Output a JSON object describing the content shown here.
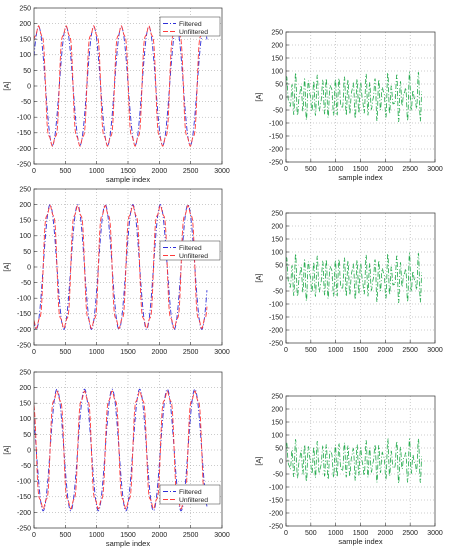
{
  "figure": {
    "accent_red": "#ff3b3b",
    "accent_blue": "#2f2fd8",
    "accent_green": "#21a94a"
  },
  "chart_data": [
    {
      "type": "line",
      "position": "row-1-left",
      "xlabel": "sample index",
      "ylabel": "[A]",
      "xlim": [
        0,
        3000
      ],
      "ylim": [
        -250,
        250
      ],
      "xticks": [
        0,
        500,
        1000,
        1500,
        2000,
        2500,
        3000
      ],
      "yticks": [
        -250,
        -200,
        -150,
        -100,
        -50,
        0,
        50,
        100,
        150,
        200,
        250
      ],
      "grid": true,
      "legend": "top-right",
      "series": [
        {
          "name": "Filtered",
          "color": "#2f2fd8",
          "style": "dash-dot",
          "shape": "sine",
          "amplitude": 190,
          "period": 440,
          "phase_deg": 30,
          "x_range": [
            0,
            2760
          ]
        },
        {
          "name": "Unfiltered",
          "color": "#ff3b3b",
          "style": "dashed",
          "shape": "distorted",
          "amplitude": 235,
          "period": 440,
          "phase_deg": 30,
          "x_range": [
            0,
            2760
          ]
        }
      ]
    },
    {
      "type": "line",
      "position": "row-1-right",
      "xlabel": "sample index",
      "ylabel": "[A]",
      "xlim": [
        0,
        3000
      ],
      "ylim": [
        -250,
        250
      ],
      "xticks": [
        0,
        500,
        1000,
        1500,
        2000,
        2500,
        3000
      ],
      "yticks": [
        -250,
        -200,
        -150,
        -100,
        -50,
        0,
        50,
        100,
        150,
        200,
        250
      ],
      "grid": true,
      "series": [
        {
          "color": "#21a94a",
          "style": "dash-dot",
          "shape": "harmonic",
          "amplitude": 95,
          "x_range": [
            0,
            2730
          ]
        }
      ]
    },
    {
      "type": "line",
      "position": "row-2-left",
      "xlabel": "",
      "ylabel": "[A]",
      "xlim": [
        0,
        3000
      ],
      "ylim": [
        -250,
        250
      ],
      "xticks": [
        0,
        500,
        1000,
        1500,
        2000,
        2500,
        3000
      ],
      "yticks": [
        -250,
        -200,
        -150,
        -100,
        -50,
        0,
        50,
        100,
        150,
        200,
        250
      ],
      "grid": true,
      "legend": "center-right",
      "series": [
        {
          "name": "Filtered",
          "color": "#2f2fd8",
          "style": "dash-dot",
          "shape": "sine",
          "amplitude": 200,
          "period": 440,
          "phase_deg": -120,
          "x_range": [
            0,
            2760
          ]
        },
        {
          "name": "Unfiltered",
          "color": "#ff3b3b",
          "style": "dashed",
          "shape": "distorted",
          "amplitude": 240,
          "period": 440,
          "phase_deg": -120,
          "x_range": [
            0,
            2760
          ]
        }
      ]
    },
    {
      "type": "line",
      "position": "row-2-right",
      "xlabel": "",
      "ylabel": "[A]",
      "xlim": [
        0,
        3000
      ],
      "ylim": [
        -250,
        250
      ],
      "xticks": [
        0,
        500,
        1000,
        1500,
        2000,
        2500,
        3000
      ],
      "yticks": [
        -250,
        -200,
        -150,
        -100,
        -50,
        0,
        50,
        100,
        150,
        200,
        250
      ],
      "grid": true,
      "series": [
        {
          "color": "#21a94a",
          "style": "dash-dot",
          "shape": "harmonic",
          "amplitude": 95,
          "x_range": [
            0,
            2730
          ]
        }
      ]
    },
    {
      "type": "line",
      "position": "row-3-left",
      "xlabel": "sample index",
      "ylabel": "[A]",
      "xlim": [
        0,
        3000
      ],
      "ylim": [
        -250,
        250
      ],
      "xticks": [
        0,
        500,
        1000,
        1500,
        2000,
        2500,
        3000
      ],
      "yticks": [
        -250,
        -200,
        -150,
        -100,
        -50,
        0,
        50,
        100,
        150,
        200,
        250
      ],
      "grid": true,
      "legend": "bottom-right",
      "series": [
        {
          "name": "Filtered",
          "color": "#2f2fd8",
          "style": "dash-dot",
          "shape": "sine",
          "amplitude": 195,
          "period": 440,
          "phase_deg": 150,
          "x_range": [
            0,
            2760
          ]
        },
        {
          "name": "Unfiltered",
          "color": "#ff3b3b",
          "style": "dashed",
          "shape": "distorted",
          "amplitude": 230,
          "period": 440,
          "phase_deg": 150,
          "x_range": [
            0,
            2760
          ]
        }
      ]
    },
    {
      "type": "line",
      "position": "row-3-right",
      "xlabel": "sample index",
      "ylabel": "[A]",
      "xlim": [
        0,
        3000
      ],
      "ylim": [
        -250,
        250
      ],
      "xticks": [
        0,
        500,
        1000,
        1500,
        2000,
        2500,
        3000
      ],
      "yticks": [
        -250,
        -200,
        -150,
        -100,
        -50,
        0,
        50,
        100,
        150,
        200,
        250
      ],
      "grid": true,
      "series": [
        {
          "color": "#21a94a",
          "style": "dash-dot",
          "shape": "harmonic",
          "amplitude": 85,
          "x_range": [
            0,
            2730
          ]
        }
      ]
    }
  ]
}
